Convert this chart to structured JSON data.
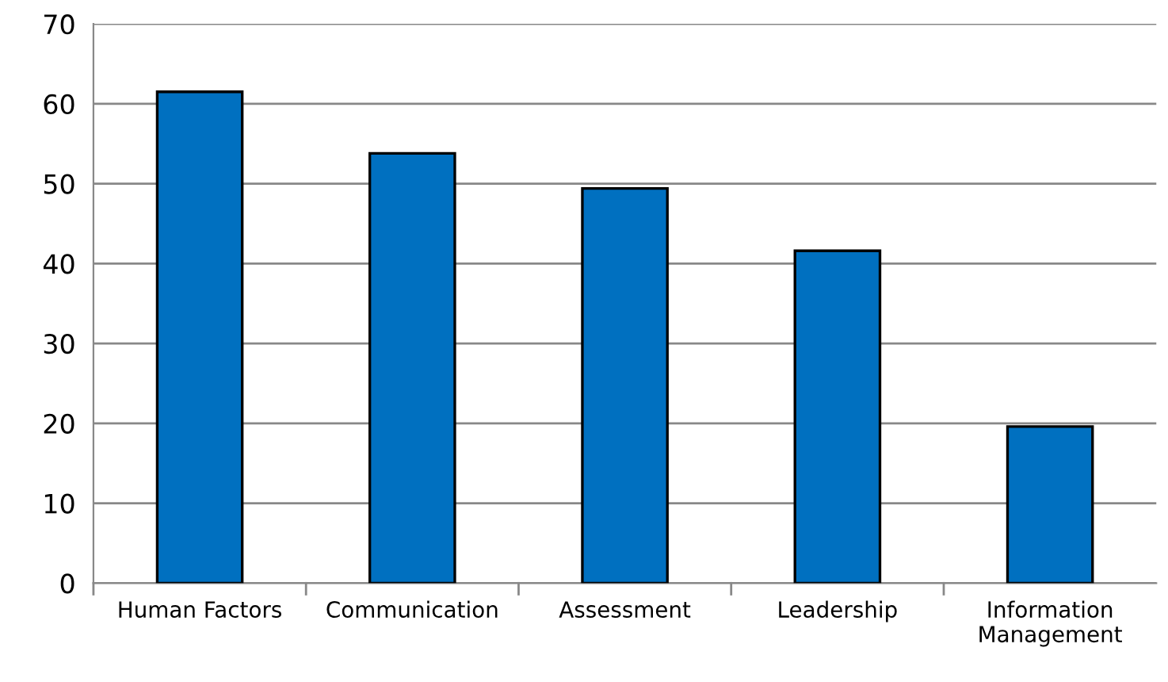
{
  "chart_data": {
    "type": "bar",
    "categories": [
      "Human Factors",
      "Communication",
      "Assessment",
      "Leadership",
      "Information\nManagement"
    ],
    "values": [
      61.5,
      53.8,
      49.4,
      41.6,
      19.6
    ],
    "color": "#0070c0",
    "ylim": [
      0,
      70
    ],
    "yticks": [
      0,
      10,
      20,
      30,
      40,
      50,
      60,
      70
    ],
    "grid": "y"
  }
}
